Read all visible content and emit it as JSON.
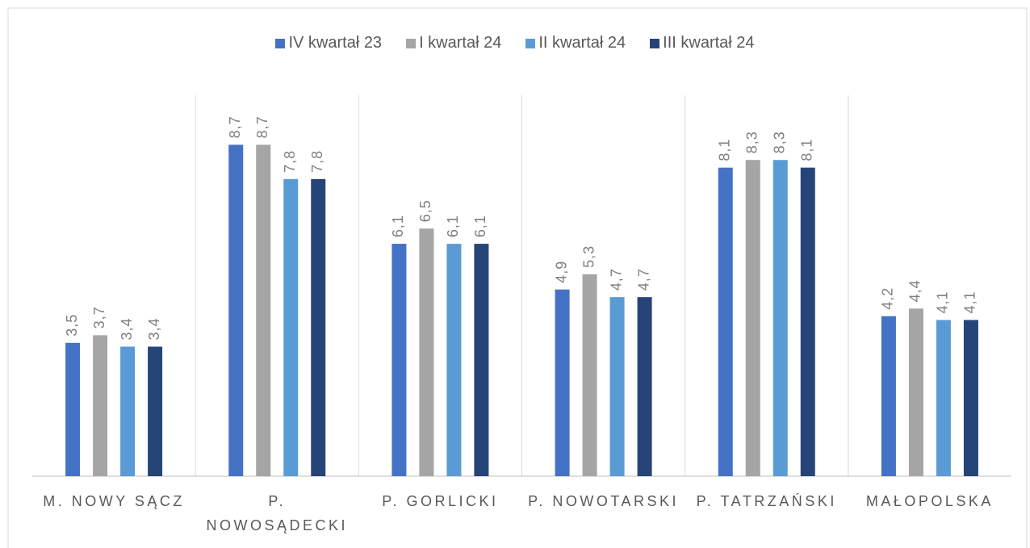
{
  "chart_data": {
    "type": "bar",
    "categories": [
      "M. NOWY SĄCZ",
      "P. NOWOSĄDECKI",
      "P. GORLICKI",
      "P. NOWOTARSKI",
      "P. TATRZAŃSKI",
      "MAŁOPOLSKA"
    ],
    "series": [
      {
        "name": "IV kwartał 23",
        "color": "#4472c4",
        "values": [
          3.5,
          8.7,
          6.1,
          4.9,
          8.1,
          4.2
        ],
        "value_labels": [
          "3,5",
          "8,7",
          "6,1",
          "4,9",
          "8,1",
          "4,2"
        ]
      },
      {
        "name": "I kwartał 24",
        "color": "#a5a5a5",
        "values": [
          3.7,
          8.7,
          6.5,
          5.3,
          8.3,
          4.4
        ],
        "value_labels": [
          "3,7",
          "8,7",
          "6,5",
          "5,3",
          "8,3",
          "4,4"
        ]
      },
      {
        "name": "II kwartał 24",
        "color": "#5b9bd5",
        "values": [
          3.4,
          7.8,
          6.1,
          4.7,
          8.3,
          4.1
        ],
        "value_labels": [
          "3,4",
          "7,8",
          "6,1",
          "4,7",
          "8,3",
          "4,1"
        ]
      },
      {
        "name": "III kwartał 24",
        "color": "#264478",
        "values": [
          3.4,
          7.8,
          6.1,
          4.7,
          8.1,
          4.1
        ],
        "value_labels": [
          "3,4",
          "7,8",
          "6,1",
          "4,7",
          "8,1",
          "4,1"
        ]
      }
    ],
    "ylim": [
      0,
      10
    ],
    "legend": "top"
  }
}
